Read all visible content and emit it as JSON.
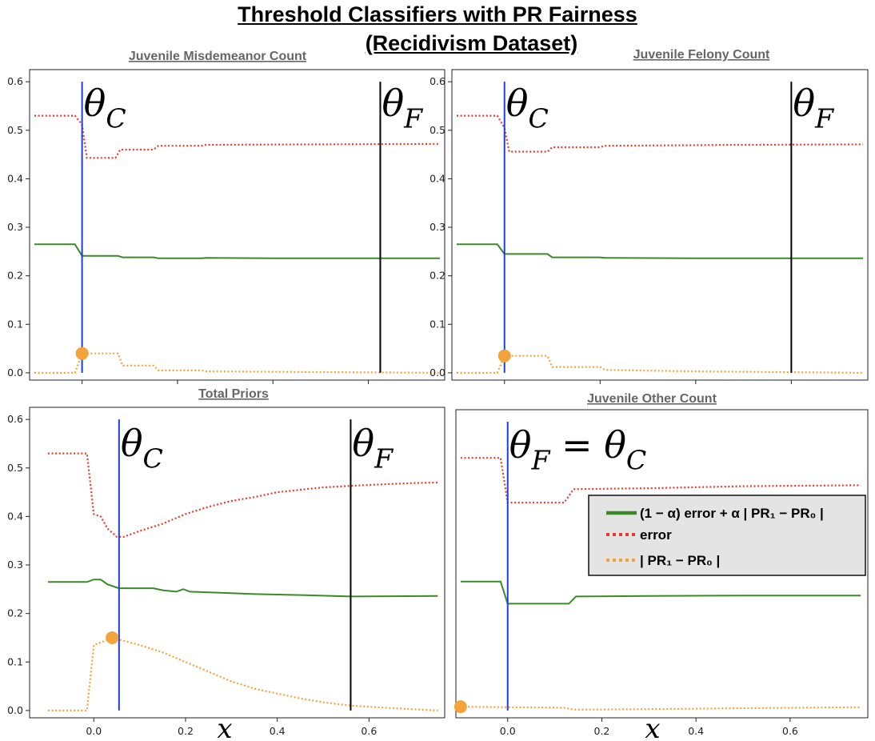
{
  "title": {
    "line1": "Threshold Classifiers with PR Fairness",
    "line2": "(Recidivism Dataset)"
  },
  "x_axis_label": "x",
  "legend": {
    "items": [
      {
        "label": "(1 − α) error + α | PR₁ − PR₀ |",
        "color": "#3a8a28",
        "style": "solid"
      },
      {
        "label": "error",
        "color": "#e8392a",
        "style": "dotted"
      },
      {
        "label": "| PR₁ − PR₀ |",
        "color": "#f2a33a",
        "style": "dotted"
      }
    ]
  },
  "chart_data": [
    {
      "type": "line",
      "title": "Juvenile Misdemeanor Count",
      "xlim": [
        -0.11,
        0.76
      ],
      "ylim": [
        -0.015,
        0.625
      ],
      "x_ticks": [
        0.0,
        0.2,
        0.4,
        0.6
      ],
      "y_ticks": [
        0.0,
        0.1,
        0.2,
        0.3,
        0.4,
        0.5,
        0.6
      ],
      "show_x_tick_labels": false,
      "theta_c": {
        "x": 0.0,
        "label": "θC"
      },
      "theta_f": {
        "x": 0.625,
        "label": "θF"
      },
      "marker": {
        "x": 0.0,
        "y": 0.04
      },
      "series": [
        {
          "name": "(1 − α) error + α | PR₁ − PR₀ |",
          "points": [
            [
              -0.1,
              0.265
            ],
            [
              -0.015,
              0.265
            ],
            [
              0.0,
              0.241
            ],
            [
              0.075,
              0.241
            ],
            [
              0.085,
              0.238
            ],
            [
              0.15,
              0.238
            ],
            [
              0.16,
              0.236
            ],
            [
              0.25,
              0.236
            ],
            [
              0.26,
              0.237
            ],
            [
              0.4,
              0.236
            ],
            [
              0.75,
              0.236
            ]
          ]
        },
        {
          "name": "error",
          "points": [
            [
              -0.1,
              0.53
            ],
            [
              -0.015,
              0.53
            ],
            [
              0.0,
              0.512
            ],
            [
              0.01,
              0.443
            ],
            [
              0.07,
              0.443
            ],
            [
              0.08,
              0.46
            ],
            [
              0.15,
              0.46
            ],
            [
              0.16,
              0.468
            ],
            [
              0.25,
              0.468
            ],
            [
              0.26,
              0.47
            ],
            [
              0.5,
              0.471
            ],
            [
              0.75,
              0.472
            ]
          ]
        },
        {
          "name": "| PR₁ − PR₀ |",
          "points": [
            [
              -0.1,
              0.0
            ],
            [
              -0.015,
              0.0
            ],
            [
              0.0,
              0.04
            ],
            [
              0.075,
              0.04
            ],
            [
              0.085,
              0.015
            ],
            [
              0.15,
              0.015
            ],
            [
              0.16,
              0.005
            ],
            [
              0.25,
              0.005
            ],
            [
              0.26,
              0.003
            ],
            [
              0.75,
              0.0
            ]
          ]
        }
      ]
    },
    {
      "type": "line",
      "title": "Juvenile  Felony Count",
      "xlim": [
        -0.11,
        0.76
      ],
      "ylim": [
        -0.015,
        0.625
      ],
      "x_ticks": [
        0.0,
        0.2,
        0.4,
        0.6
      ],
      "y_ticks": [
        0.0,
        0.1,
        0.2,
        0.3,
        0.4,
        0.5,
        0.6
      ],
      "show_x_tick_labels": false,
      "theta_c": {
        "x": 0.0,
        "label": "θC"
      },
      "theta_f": {
        "x": 0.6,
        "label": "θF"
      },
      "marker": {
        "x": 0.0,
        "y": 0.035
      },
      "series": [
        {
          "name": "(1 − α) error + α | PR₁ − PR₀ |",
          "points": [
            [
              -0.1,
              0.265
            ],
            [
              -0.015,
              0.265
            ],
            [
              0.0,
              0.245
            ],
            [
              0.09,
              0.245
            ],
            [
              0.1,
              0.238
            ],
            [
              0.2,
              0.238
            ],
            [
              0.21,
              0.237
            ],
            [
              0.4,
              0.236
            ],
            [
              0.75,
              0.236
            ]
          ]
        },
        {
          "name": "error",
          "points": [
            [
              -0.1,
              0.53
            ],
            [
              -0.015,
              0.53
            ],
            [
              0.0,
              0.505
            ],
            [
              0.01,
              0.456
            ],
            [
              0.09,
              0.456
            ],
            [
              0.1,
              0.465
            ],
            [
              0.2,
              0.465
            ],
            [
              0.21,
              0.468
            ],
            [
              0.5,
              0.47
            ],
            [
              0.75,
              0.471
            ]
          ]
        },
        {
          "name": "| PR₁ − PR₀ |",
          "points": [
            [
              -0.1,
              0.0
            ],
            [
              -0.015,
              0.0
            ],
            [
              0.0,
              0.035
            ],
            [
              0.09,
              0.035
            ],
            [
              0.1,
              0.012
            ],
            [
              0.2,
              0.012
            ],
            [
              0.21,
              0.006
            ],
            [
              0.4,
              0.003
            ],
            [
              0.75,
              0.0
            ]
          ]
        }
      ]
    },
    {
      "type": "line",
      "title": "Total Priors",
      "xlim": [
        -0.14,
        0.765
      ],
      "ylim": [
        -0.015,
        0.625
      ],
      "x_ticks": [
        0.0,
        0.2,
        0.4,
        0.6
      ],
      "y_ticks": [
        0.0,
        0.1,
        0.2,
        0.3,
        0.4,
        0.5,
        0.6
      ],
      "show_x_tick_labels": true,
      "theta_c": {
        "x": 0.055,
        "label": "θC"
      },
      "theta_f": {
        "x": 0.56,
        "label": "θF"
      },
      "marker": {
        "x": 0.04,
        "y": 0.15
      },
      "series": [
        {
          "name": "(1 − α) error + α | PR₁ − PR₀ |",
          "points": [
            [
              -0.1,
              0.265
            ],
            [
              -0.015,
              0.265
            ],
            [
              0.0,
              0.27
            ],
            [
              0.015,
              0.27
            ],
            [
              0.03,
              0.26
            ],
            [
              0.055,
              0.252
            ],
            [
              0.13,
              0.252
            ],
            [
              0.15,
              0.248
            ],
            [
              0.18,
              0.245
            ],
            [
              0.195,
              0.25
            ],
            [
              0.21,
              0.245
            ],
            [
              0.27,
              0.243
            ],
            [
              0.3,
              0.242
            ],
            [
              0.35,
              0.24
            ],
            [
              0.45,
              0.238
            ],
            [
              0.56,
              0.235
            ],
            [
              0.75,
              0.236
            ]
          ]
        },
        {
          "name": "error",
          "points": [
            [
              -0.1,
              0.53
            ],
            [
              -0.015,
              0.53
            ],
            [
              0.0,
              0.405
            ],
            [
              0.015,
              0.4
            ],
            [
              0.03,
              0.375
            ],
            [
              0.05,
              0.358
            ],
            [
              0.065,
              0.358
            ],
            [
              0.1,
              0.37
            ],
            [
              0.15,
              0.385
            ],
            [
              0.2,
              0.405
            ],
            [
              0.25,
              0.42
            ],
            [
              0.3,
              0.432
            ],
            [
              0.35,
              0.44
            ],
            [
              0.4,
              0.45
            ],
            [
              0.45,
              0.455
            ],
            [
              0.5,
              0.46
            ],
            [
              0.6,
              0.465
            ],
            [
              0.7,
              0.469
            ],
            [
              0.75,
              0.47
            ]
          ]
        },
        {
          "name": "| PR₁ − PR₀ |",
          "points": [
            [
              -0.1,
              0.0
            ],
            [
              -0.015,
              0.0
            ],
            [
              0.0,
              0.135
            ],
            [
              0.015,
              0.14
            ],
            [
              0.04,
              0.15
            ],
            [
              0.06,
              0.145
            ],
            [
              0.1,
              0.135
            ],
            [
              0.15,
              0.12
            ],
            [
              0.2,
              0.1
            ],
            [
              0.25,
              0.08
            ],
            [
              0.3,
              0.06
            ],
            [
              0.35,
              0.045
            ],
            [
              0.4,
              0.035
            ],
            [
              0.45,
              0.025
            ],
            [
              0.5,
              0.017
            ],
            [
              0.56,
              0.01
            ],
            [
              0.65,
              0.005
            ],
            [
              0.75,
              0.0
            ]
          ]
        }
      ]
    },
    {
      "type": "line",
      "title": "Juvenile  Other Count",
      "xlim": [
        -0.11,
        0.765
      ],
      "ylim": [
        -0.015,
        0.625
      ],
      "x_ticks": [
        0.0,
        0.2,
        0.4,
        0.6
      ],
      "y_ticks": [],
      "show_x_tick_labels": true,
      "theta_c": {
        "x": 0.0,
        "label": "θF = θC"
      },
      "theta_f": null,
      "marker": {
        "x": -0.1,
        "y": 0.008
      },
      "series": [
        {
          "name": "(1 − α) error + α | PR₁ − PR₀ |",
          "points": [
            [
              -0.1,
              0.268
            ],
            [
              -0.015,
              0.268
            ],
            [
              0.0,
              0.222
            ],
            [
              0.13,
              0.222
            ],
            [
              0.145,
              0.237
            ],
            [
              0.3,
              0.238
            ],
            [
              0.5,
              0.239
            ],
            [
              0.75,
              0.239
            ]
          ]
        },
        {
          "name": "error",
          "points": [
            [
              -0.1,
              0.525
            ],
            [
              -0.015,
              0.525
            ],
            [
              0.0,
              0.432
            ],
            [
              0.12,
              0.432
            ],
            [
              0.14,
              0.46
            ],
            [
              0.3,
              0.462
            ],
            [
              0.5,
              0.466
            ],
            [
              0.75,
              0.468
            ]
          ]
        },
        {
          "name": "| PR₁ − PR₀ |",
          "points": [
            [
              -0.1,
              0.008
            ],
            [
              0.12,
              0.006
            ],
            [
              0.14,
              0.002
            ],
            [
              0.3,
              0.003
            ],
            [
              0.5,
              0.005
            ],
            [
              0.75,
              0.007
            ]
          ]
        }
      ]
    }
  ]
}
